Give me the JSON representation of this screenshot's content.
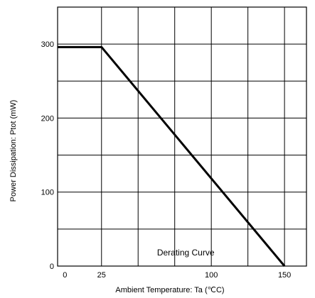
{
  "chart_data": {
    "type": "line",
    "title": "",
    "xlabel": "Ambient Temperature: Ta (℃C)",
    "ylabel": "Power Dissipation: Ptot (mW)",
    "xlim": [
      -5,
      165
    ],
    "ylim": [
      0,
      350
    ],
    "x_ticks": [
      0,
      25,
      100,
      150
    ],
    "x_tick_labels": [
      "0",
      "25",
      "100",
      "150"
    ],
    "x_grid": [
      25,
      50,
      75,
      100,
      125,
      150
    ],
    "y_ticks": [
      0,
      100,
      200,
      300
    ],
    "y_tick_labels": [
      "0",
      "100",
      "200",
      "300"
    ],
    "y_grid": [
      50,
      100,
      150,
      200,
      250,
      300
    ],
    "grid": true,
    "series": [
      {
        "x": [
          -5,
          25,
          150
        ],
        "y": [
          296,
          296,
          0
        ]
      }
    ],
    "annotations": [
      {
        "text": "Derating Curve",
        "x": 100,
        "y": 18
      }
    ]
  }
}
